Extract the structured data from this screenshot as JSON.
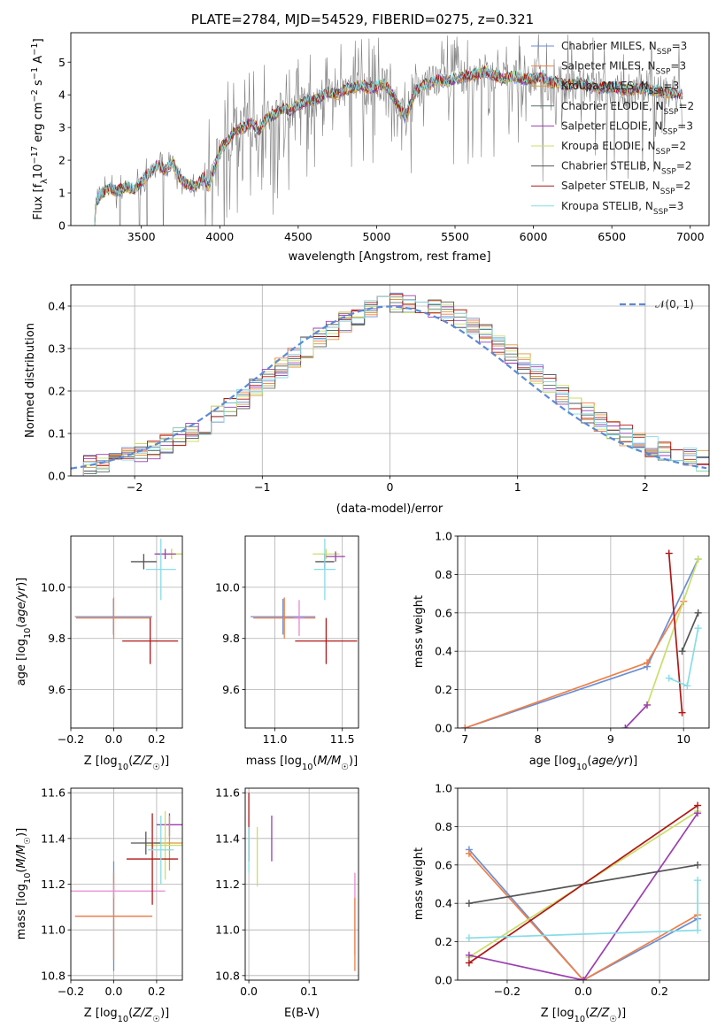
{
  "title": "PLATE=2784, MJD=54529, FIBERID=0275, z=0.321",
  "colors": {
    "chabrier_miles": "#6a8ed8",
    "salpeter_miles": "#f07f45",
    "kroupa_miles": "#d99a3a",
    "chabrier_elodie": "#55706a",
    "salpeter_elodie": "#9b3fb0",
    "kroupa_elodie": "#c8df6a",
    "chabrier_stelib": "#555555",
    "salpeter_stelib": "#b01818",
    "kroupa_stelib": "#86dde6",
    "data": "#7f7f7f",
    "gauss": "#5b8ad6",
    "pink": "#e68ad0"
  },
  "chart_data": [
    {
      "type": "line",
      "title": "PLATE=2784, MJD=54529, FIBERID=0275, z=0.321",
      "xlabel": "wavelength [Angstrom, rest frame]",
      "ylabel": "Flux [f_λ 10^-17 erg cm^-2 s^-1 A^-1]",
      "xlim": [
        3050,
        7120
      ],
      "ylim": [
        0,
        5.9
      ],
      "xticks": [
        "3500",
        "4000",
        "4500",
        "5000",
        "5500",
        "6000",
        "6500",
        "7000"
      ],
      "yticks": [
        "0",
        "1",
        "2",
        "3",
        "4",
        "5"
      ],
      "grid": false,
      "legend_position": "right",
      "spectrum_anchors": {
        "x": [
          3200,
          3210,
          3250,
          3300,
          3350,
          3400,
          3450,
          3500,
          3550,
          3600,
          3650,
          3700,
          3750,
          3800,
          3850,
          3900,
          3920,
          3950,
          4000,
          4050,
          4100,
          4150,
          4200,
          4250,
          4300,
          4350,
          4400,
          4450,
          4500,
          4550,
          4600,
          4650,
          4700,
          4750,
          4800,
          4850,
          4900,
          4950,
          5000,
          5050,
          5100,
          5150,
          5180,
          5250,
          5300,
          5350,
          5400,
          5450,
          5500,
          5550,
          5600,
          5650,
          5700,
          5750,
          5800,
          5850,
          5900,
          5950,
          6000,
          6050,
          6100,
          6200,
          6300,
          6400,
          6500,
          6600,
          6700,
          6800,
          6900,
          6950
        ],
        "y": [
          0.0,
          0.7,
          1.0,
          1.15,
          1.05,
          1.2,
          1.1,
          1.35,
          1.6,
          1.85,
          1.7,
          1.9,
          1.4,
          1.25,
          1.2,
          1.5,
          1.2,
          1.45,
          2.3,
          2.6,
          2.9,
          3.0,
          3.15,
          2.9,
          3.3,
          3.4,
          3.6,
          3.5,
          3.7,
          3.8,
          3.85,
          3.95,
          4.1,
          4.0,
          4.15,
          4.2,
          4.3,
          4.2,
          4.25,
          4.35,
          4.0,
          3.6,
          3.3,
          4.1,
          4.3,
          4.35,
          4.45,
          4.4,
          4.5,
          4.55,
          4.6,
          4.65,
          4.7,
          4.6,
          4.5,
          4.55,
          4.55,
          4.45,
          4.5,
          4.55,
          4.4,
          4.3,
          4.35,
          4.2,
          4.25,
          4.15,
          4.2,
          4.1,
          4.05,
          4.0
        ]
      },
      "series": [
        {
          "name": "Chabrier MILES, N_SSP=3"
        },
        {
          "name": "Salpeter MILES, N_SSP=3"
        },
        {
          "name": "Kroupa MILES, N_SSP=3"
        },
        {
          "name": "Chabrier ELODIE, N_SSP=2"
        },
        {
          "name": "Salpeter ELODIE, N_SSP=3"
        },
        {
          "name": "Kroupa ELODIE, N_SSP=2"
        },
        {
          "name": "Chabrier STELIB, N_SSP=2"
        },
        {
          "name": "Salpeter STELIB, N_SSP=2"
        },
        {
          "name": "Kroupa STELIB, N_SSP=3"
        }
      ]
    },
    {
      "type": "line",
      "xlabel": "(data-model)/error",
      "ylabel": "Normed distribution",
      "xlim": [
        -2.5,
        2.5
      ],
      "ylim": [
        0,
        0.45
      ],
      "xticks": [
        "−2",
        "−1",
        "0",
        "1",
        "2"
      ],
      "yticks": [
        "0.0",
        "0.1",
        "0.2",
        "0.3",
        "0.4"
      ],
      "grid": true,
      "legend_position": "top-right",
      "gaussian_label": "𝒩(0, 1)",
      "bin_width": 0.1
    },
    {
      "type": "scatter",
      "xlabel": "Z [log10(Z/Z☉)]",
      "ylabel": "age [log10(age/yr)]",
      "xlim": [
        -0.2,
        0.32
      ],
      "ylim": [
        9.45,
        10.2
      ],
      "xticks": [
        "−0.2",
        "0.0",
        "0.2"
      ],
      "yticks": [
        "9.6",
        "9.8",
        "10.0"
      ],
      "grid": true,
      "points": [
        {
          "x": -0.001,
          "y": 9.885,
          "xerr": 0.18,
          "yerr": 0.07,
          "color": "#6a8ed8"
        },
        {
          "x": 0.0,
          "y": 9.88,
          "xerr": 0.175,
          "yerr": 0.08,
          "color": "#f07f45"
        },
        {
          "x": 0.27,
          "y": 10.13,
          "xerr": 0.07,
          "yerr": 0.02,
          "color": "#d99a3a"
        },
        {
          "x": 0.27,
          "y": 10.13,
          "xerr": 0.06,
          "yerr": 0.02,
          "color": "#c8df6a"
        },
        {
          "x": 0.24,
          "y": 10.13,
          "xerr": 0.05,
          "yerr": 0.02,
          "color": "#9b3fb0"
        },
        {
          "x": 0.14,
          "y": 10.1,
          "xerr": 0.06,
          "yerr": 0.03,
          "color": "#555555"
        },
        {
          "x": 0.17,
          "y": 9.79,
          "xerr": 0.13,
          "yerr": 0.09,
          "color": "#b01818"
        },
        {
          "x": 0.22,
          "y": 10.07,
          "xerr": 0.07,
          "yerr": 0.12,
          "color": "#86dde6"
        }
      ]
    },
    {
      "type": "scatter",
      "xlabel": "mass [log10(M/M☉)]",
      "ylabel": "",
      "xlim": [
        10.78,
        11.62
      ],
      "ylim": [
        9.45,
        10.2
      ],
      "xticks": [
        "11.0",
        "11.5"
      ],
      "yticks": [
        "9.6",
        "9.8",
        "10.0"
      ],
      "grid": true,
      "points": [
        {
          "x": 11.06,
          "y": 9.885,
          "xerr": 0.24,
          "yerr": 0.07,
          "color": "#6a8ed8"
        },
        {
          "x": 11.07,
          "y": 9.88,
          "xerr": 0.23,
          "yerr": 0.08,
          "color": "#f07f45"
        },
        {
          "x": 11.38,
          "y": 10.13,
          "xerr": 0.1,
          "yerr": 0.02,
          "color": "#c8df6a"
        },
        {
          "x": 11.45,
          "y": 10.12,
          "xerr": 0.07,
          "yerr": 0.02,
          "color": "#9b3fb0"
        },
        {
          "x": 11.37,
          "y": 10.1,
          "xerr": 0.07,
          "yerr": 0.03,
          "color": "#555555"
        },
        {
          "x": 11.38,
          "y": 9.79,
          "xerr": 0.23,
          "yerr": 0.09,
          "color": "#b01818"
        },
        {
          "x": 11.37,
          "y": 10.07,
          "xerr": 0.08,
          "yerr": 0.12,
          "color": "#86dde6"
        },
        {
          "x": 11.18,
          "y": 9.88,
          "xerr": 0.04,
          "yerr": 0.07,
          "color": "#e68ad0"
        }
      ]
    },
    {
      "type": "line",
      "xlabel": "age [log10(age/yr)]",
      "ylabel": "mass weight",
      "xlim": [
        6.9,
        10.35
      ],
      "ylim": [
        0,
        1
      ],
      "xticks": [
        "7",
        "8",
        "9",
        "10"
      ],
      "yticks": [
        "0.0",
        "0.2",
        "0.4",
        "0.6",
        "0.8",
        "1.0"
      ],
      "grid": true,
      "series": [
        {
          "color": "#6a8ed8",
          "x": [
            7.0,
            9.5,
            10.2
          ],
          "y": [
            0.0,
            0.32,
            0.88
          ]
        },
        {
          "color": "#f07f45",
          "x": [
            7.0,
            9.5,
            10.0
          ],
          "y": [
            0.0,
            0.34,
            0.66
          ]
        },
        {
          "color": "#c8df6a",
          "x": [
            9.5,
            10.2
          ],
          "y": [
            0.12,
            0.88
          ]
        },
        {
          "color": "#9b3fb0",
          "x": [
            9.2,
            9.5
          ],
          "y": [
            0.0,
            0.12
          ]
        },
        {
          "color": "#555555",
          "x": [
            9.98,
            10.2
          ],
          "y": [
            0.4,
            0.6
          ]
        },
        {
          "color": "#b01818",
          "x": [
            9.8,
            9.98
          ],
          "y": [
            0.91,
            0.08
          ]
        },
        {
          "color": "#86dde6",
          "x": [
            9.8,
            10.05,
            10.2
          ],
          "y": [
            0.26,
            0.22,
            0.52
          ]
        }
      ]
    },
    {
      "type": "scatter",
      "xlabel": "Z [log10(Z/Z☉)]",
      "ylabel": "mass [log10(M/M☉)]",
      "xlim": [
        -0.2,
        0.32
      ],
      "ylim": [
        10.78,
        11.62
      ],
      "xticks": [
        "−0.2",
        "0.0",
        "0.2"
      ],
      "yticks": [
        "10.8",
        "11.0",
        "11.2",
        "11.4",
        "11.6"
      ],
      "grid": true,
      "points": [
        {
          "x": 0.0,
          "y": 11.06,
          "xerr": 0.18,
          "yerr": 0.24,
          "color": "#6a8ed8"
        },
        {
          "x": 0.0,
          "y": 11.06,
          "xerr": 0.18,
          "yerr": 0.19,
          "color": "#f07f45"
        },
        {
          "x": 0.0,
          "y": 11.17,
          "xerr": 0.24,
          "yerr": 0.03,
          "color": "#e68ad0"
        },
        {
          "x": 0.26,
          "y": 11.46,
          "xerr": 0.06,
          "yerr": 0.05,
          "color": "#9b3fb0"
        },
        {
          "x": 0.26,
          "y": 11.38,
          "xerr": 0.07,
          "yerr": 0.12,
          "color": "#d99a3a"
        },
        {
          "x": 0.24,
          "y": 11.37,
          "xerr": 0.09,
          "yerr": 0.15,
          "color": "#c8df6a"
        },
        {
          "x": 0.15,
          "y": 11.38,
          "xerr": 0.07,
          "yerr": 0.05,
          "color": "#555555"
        },
        {
          "x": 0.18,
          "y": 11.31,
          "xerr": 0.12,
          "yerr": 0.2,
          "color": "#b01818"
        },
        {
          "x": 0.22,
          "y": 11.35,
          "xerr": 0.06,
          "yerr": 0.15,
          "color": "#86dde6"
        }
      ]
    },
    {
      "type": "scatter",
      "xlabel": "E(B-V)",
      "ylabel": "",
      "xlim": [
        -0.006,
        0.182
      ],
      "ylim": [
        10.78,
        11.62
      ],
      "xticks": [
        "0.0",
        "0.1"
      ],
      "yticks": [
        "10.8",
        "11.0",
        "11.2",
        "11.4",
        "11.6"
      ],
      "grid": true,
      "points": [
        {
          "x": 0.0,
          "y": 11.45,
          "yerr": 0.15,
          "color": "#b01818"
        },
        {
          "x": 0.0,
          "y": 11.35,
          "yerr": 0.1,
          "color": "#86dde6"
        },
        {
          "x": 0.014,
          "y": 11.32,
          "yerr": 0.13,
          "color": "#c8df6a"
        },
        {
          "x": 0.038,
          "y": 11.4,
          "yerr": 0.1,
          "color": "#9b3fb0"
        },
        {
          "x": 0.176,
          "y": 11.07,
          "yerr": 0.18,
          "color": "#e68ad0"
        },
        {
          "x": 0.176,
          "y": 10.98,
          "yerr": 0.16,
          "color": "#f07f45"
        }
      ]
    },
    {
      "type": "line",
      "xlabel": "Z [log10(Z/Z☉)]",
      "ylabel": "mass weight",
      "xlim": [
        -0.33,
        0.33
      ],
      "ylim": [
        0,
        1
      ],
      "xticks": [
        "−0.2",
        "0.0",
        "0.2"
      ],
      "yticks": [
        "0.0",
        "0.2",
        "0.4",
        "0.6",
        "0.8",
        "1.0"
      ],
      "grid": true,
      "series": [
        {
          "color": "#6a8ed8",
          "x": [
            -0.3,
            0.0,
            0.3
          ],
          "y": [
            0.68,
            0.0,
            0.32
          ]
        },
        {
          "color": "#f07f45",
          "x": [
            -0.3,
            0.0,
            0.3
          ],
          "y": [
            0.66,
            0.0,
            0.34
          ]
        },
        {
          "color": "#c8df6a",
          "x": [
            -0.3,
            0.3
          ],
          "y": [
            0.12,
            0.88
          ]
        },
        {
          "color": "#9b3fb0",
          "x": [
            -0.3,
            0.0,
            0.3
          ],
          "y": [
            0.13,
            0.0,
            0.87
          ]
        },
        {
          "color": "#555555",
          "x": [
            -0.3,
            0.3
          ],
          "y": [
            0.4,
            0.6
          ]
        },
        {
          "color": "#b01818",
          "x": [
            -0.3,
            0.3
          ],
          "y": [
            0.09,
            0.91
          ]
        },
        {
          "color": "#86dde6",
          "x": [
            -0.3,
            0.3,
            0.3
          ],
          "y": [
            0.22,
            0.26,
            0.52
          ]
        }
      ]
    }
  ]
}
